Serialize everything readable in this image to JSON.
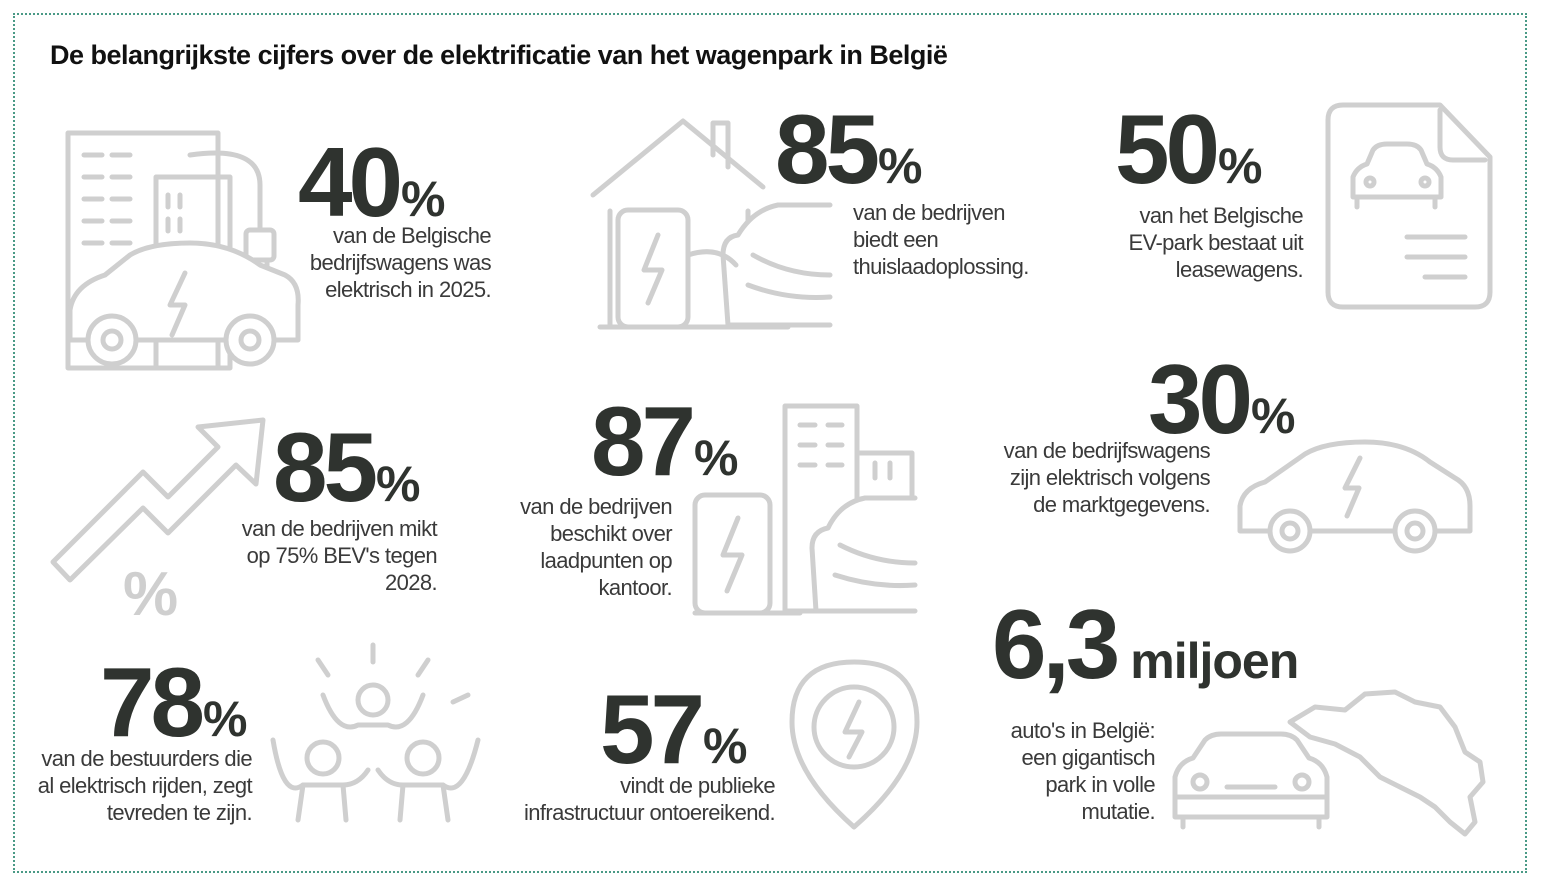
{
  "title": "De belangrijkste cijfers over de elektrificatie van het wagenpark in België",
  "icons": {
    "building_car_plug": "building-car-plug-icon",
    "house_charger": "house-charger-icon",
    "lease_document": "lease-document-icon",
    "growth_arrow": "growth-arrow-icon",
    "office_charger": "office-charger-icon",
    "ev_car": "ev-car-icon",
    "happy_people": "happy-people-icon",
    "charging_pin": "charging-pin-icon",
    "belgium_car": "belgium-car-icon"
  },
  "stats": {
    "s40": {
      "value": "40",
      "unit": "%",
      "text": [
        "van de Belgische",
        "bedrijfswagens was",
        "elektrisch in 2025."
      ]
    },
    "s85a": {
      "value": "85",
      "unit": "%",
      "text": [
        "van de bedrijven",
        "biedt een",
        "thuislaadoplossing."
      ]
    },
    "s50": {
      "value": "50",
      "unit": "%",
      "text": [
        "van het Belgische",
        "EV-park bestaat uit",
        "leasewagens."
      ]
    },
    "s85b": {
      "value": "85",
      "unit": "%",
      "text": [
        "van de bedrijven mikt",
        "op 75% BEV's tegen",
        "2028."
      ]
    },
    "s87": {
      "value": "87",
      "unit": "%",
      "text": [
        "van de bedrijven",
        "beschikt over",
        "laadpunten op",
        "kantoor."
      ]
    },
    "s30": {
      "value": "30",
      "unit": "%",
      "text": [
        "van de bedrijfswagens",
        "zijn elektrisch volgens",
        "de marktgegevens."
      ]
    },
    "s78": {
      "value": "78",
      "unit": "%",
      "text": [
        "van de bestuurders die",
        "al elektrisch rijden, zegt",
        "tevreden te zijn."
      ]
    },
    "s57": {
      "value": "57",
      "unit": "%",
      "text": [
        "vindt de publieke",
        "infrastructuur ontoereikend."
      ]
    },
    "s63": {
      "value": "6,3",
      "unit": "miljoen",
      "text": [
        "auto's in België:",
        "een gigantisch",
        "park in volle",
        "mutatie."
      ]
    }
  },
  "percent_symbol": "%"
}
